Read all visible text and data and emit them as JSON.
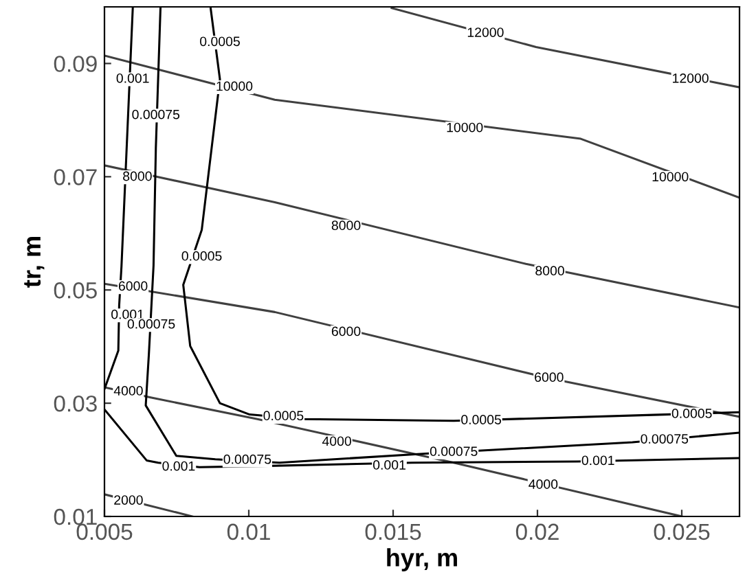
{
  "chart_data": {
    "type": "line",
    "xlabel": "hyr, m",
    "ylabel": "tr, m",
    "xlim": [
      0.005,
      0.027
    ],
    "ylim": [
      0.01,
      0.1
    ],
    "xticks": [
      0.005,
      0.01,
      0.015,
      0.02,
      0.025
    ],
    "yticks": [
      0.01,
      0.03,
      0.05,
      0.07,
      0.09
    ],
    "grid": false,
    "legend": false,
    "marker": "none",
    "line_style": "solid",
    "series": [
      {
        "color": "#404040",
        "x": [
          0.01495,
          0.01995,
          0.027
        ],
        "values": [
          0.0998,
          0.0929,
          0.0858
        ]
      },
      {
        "color": "#404040",
        "x": [
          0.005,
          0.0109,
          0.0215,
          0.027
        ],
        "values": [
          0.0914,
          0.0836,
          0.0767,
          0.0663
        ]
      },
      {
        "color": "#404040",
        "x": [
          0.005,
          0.0109,
          0.0196,
          0.027
        ],
        "values": [
          0.072,
          0.0655,
          0.0546,
          0.0469
        ]
      },
      {
        "color": "#404040",
        "x": [
          0.005,
          0.0109,
          0.0204,
          0.027
        ],
        "values": [
          0.0511,
          0.0461,
          0.0344,
          0.0276
        ]
      },
      {
        "color": "#404040",
        "x": [
          0.005,
          0.0066,
          0.0103,
          0.0171,
          0.025
        ],
        "values": [
          0.0328,
          0.031,
          0.0272,
          0.0195,
          0.01
        ]
      },
      {
        "color": "#404040",
        "x": [
          0.005,
          0.00805
        ],
        "values": [
          0.0139,
          0.01
        ]
      },
      {
        "color": "#000000",
        "x": [
          0.00598,
          0.00559,
          0.00551,
          0.00548,
          0.005
        ],
        "values": [
          0.0997,
          0.0542,
          0.0473,
          0.0393,
          0.0325
        ]
      },
      {
        "color": "#000000",
        "x": [
          0.005,
          0.00646,
          0.00686,
          0.00829,
          0.01043,
          0.01567,
          0.02138,
          0.027
        ],
        "values": [
          0.0289,
          0.0199,
          0.0195,
          0.0187,
          0.0189,
          0.0195,
          0.0197,
          0.0203
        ]
      },
      {
        "color": "#000000",
        "x": [
          0.00694,
          0.00678,
          0.0067,
          0.00654,
          0.00643,
          0.00749,
          0.00884,
          0.01106,
          0.01614,
          0.02329,
          0.027
        ],
        "values": [
          0.0997,
          0.0751,
          0.0543,
          0.0388,
          0.0296,
          0.0207,
          0.0201,
          0.0195,
          0.0211,
          0.0231,
          0.0248
        ]
      },
      {
        "color": "#000000",
        "x": [
          0.00868,
          0.009,
          0.00837,
          0.00773,
          0.00797,
          0.009,
          0.01003,
          0.01186,
          0.0171,
          0.0244,
          0.027
        ],
        "values": [
          0.0997,
          0.0872,
          0.0606,
          0.0509,
          0.0401,
          0.03,
          0.028,
          0.0272,
          0.0269,
          0.028,
          0.0284
        ]
      }
    ],
    "annotations": [
      {
        "text": "12000",
        "x": 0.0182,
        "y": 0.0953
      },
      {
        "text": "12000",
        "x": 0.0253,
        "y": 0.0872
      },
      {
        "text": "10000",
        "x": 0.0095,
        "y": 0.0858
      },
      {
        "text": "10000",
        "x": 0.01748,
        "y": 0.0785
      },
      {
        "text": "10000",
        "x": 0.0246,
        "y": 0.0698
      },
      {
        "text": "8000",
        "x": 0.00614,
        "y": 0.0699
      },
      {
        "text": "8000",
        "x": 0.01337,
        "y": 0.0612
      },
      {
        "text": "8000",
        "x": 0.02043,
        "y": 0.0532
      },
      {
        "text": "6000",
        "x": 0.00599,
        "y": 0.0505
      },
      {
        "text": "6000",
        "x": 0.01337,
        "y": 0.0425
      },
      {
        "text": "6000",
        "x": 0.0204,
        "y": 0.0344
      },
      {
        "text": "4000",
        "x": 0.00583,
        "y": 0.032
      },
      {
        "text": "4000",
        "x": 0.01305,
        "y": 0.0231
      },
      {
        "text": "4000",
        "x": 0.0202,
        "y": 0.0155
      },
      {
        "text": "2000",
        "x": 0.00583,
        "y": 0.0127
      },
      {
        "text": "0.001",
        "x": 0.00598,
        "y": 0.0872
      },
      {
        "text": "0.001",
        "x": 0.0058,
        "y": 0.0455
      },
      {
        "text": "0.001",
        "x": 0.00757,
        "y": 0.0187
      },
      {
        "text": "0.001",
        "x": 0.01487,
        "y": 0.0189
      },
      {
        "text": "0.001",
        "x": 0.0221,
        "y": 0.0197
      },
      {
        "text": "0.00075",
        "x": 0.00678,
        "y": 0.0808
      },
      {
        "text": "0.00075",
        "x": 0.00662,
        "y": 0.0438
      },
      {
        "text": "0.00075",
        "x": 0.00995,
        "y": 0.0199
      },
      {
        "text": "0.00075",
        "x": 0.0171,
        "y": 0.0213
      },
      {
        "text": "0.00075",
        "x": 0.0244,
        "y": 0.0235
      },
      {
        "text": "0.0005",
        "x": 0.009,
        "y": 0.0937
      },
      {
        "text": "0.0005",
        "x": 0.00837,
        "y": 0.0558
      },
      {
        "text": "0.0005",
        "x": 0.0112,
        "y": 0.0276
      },
      {
        "text": "0.0005",
        "x": 0.01805,
        "y": 0.0269
      },
      {
        "text": "0.0005",
        "x": 0.02535,
        "y": 0.028
      }
    ]
  }
}
